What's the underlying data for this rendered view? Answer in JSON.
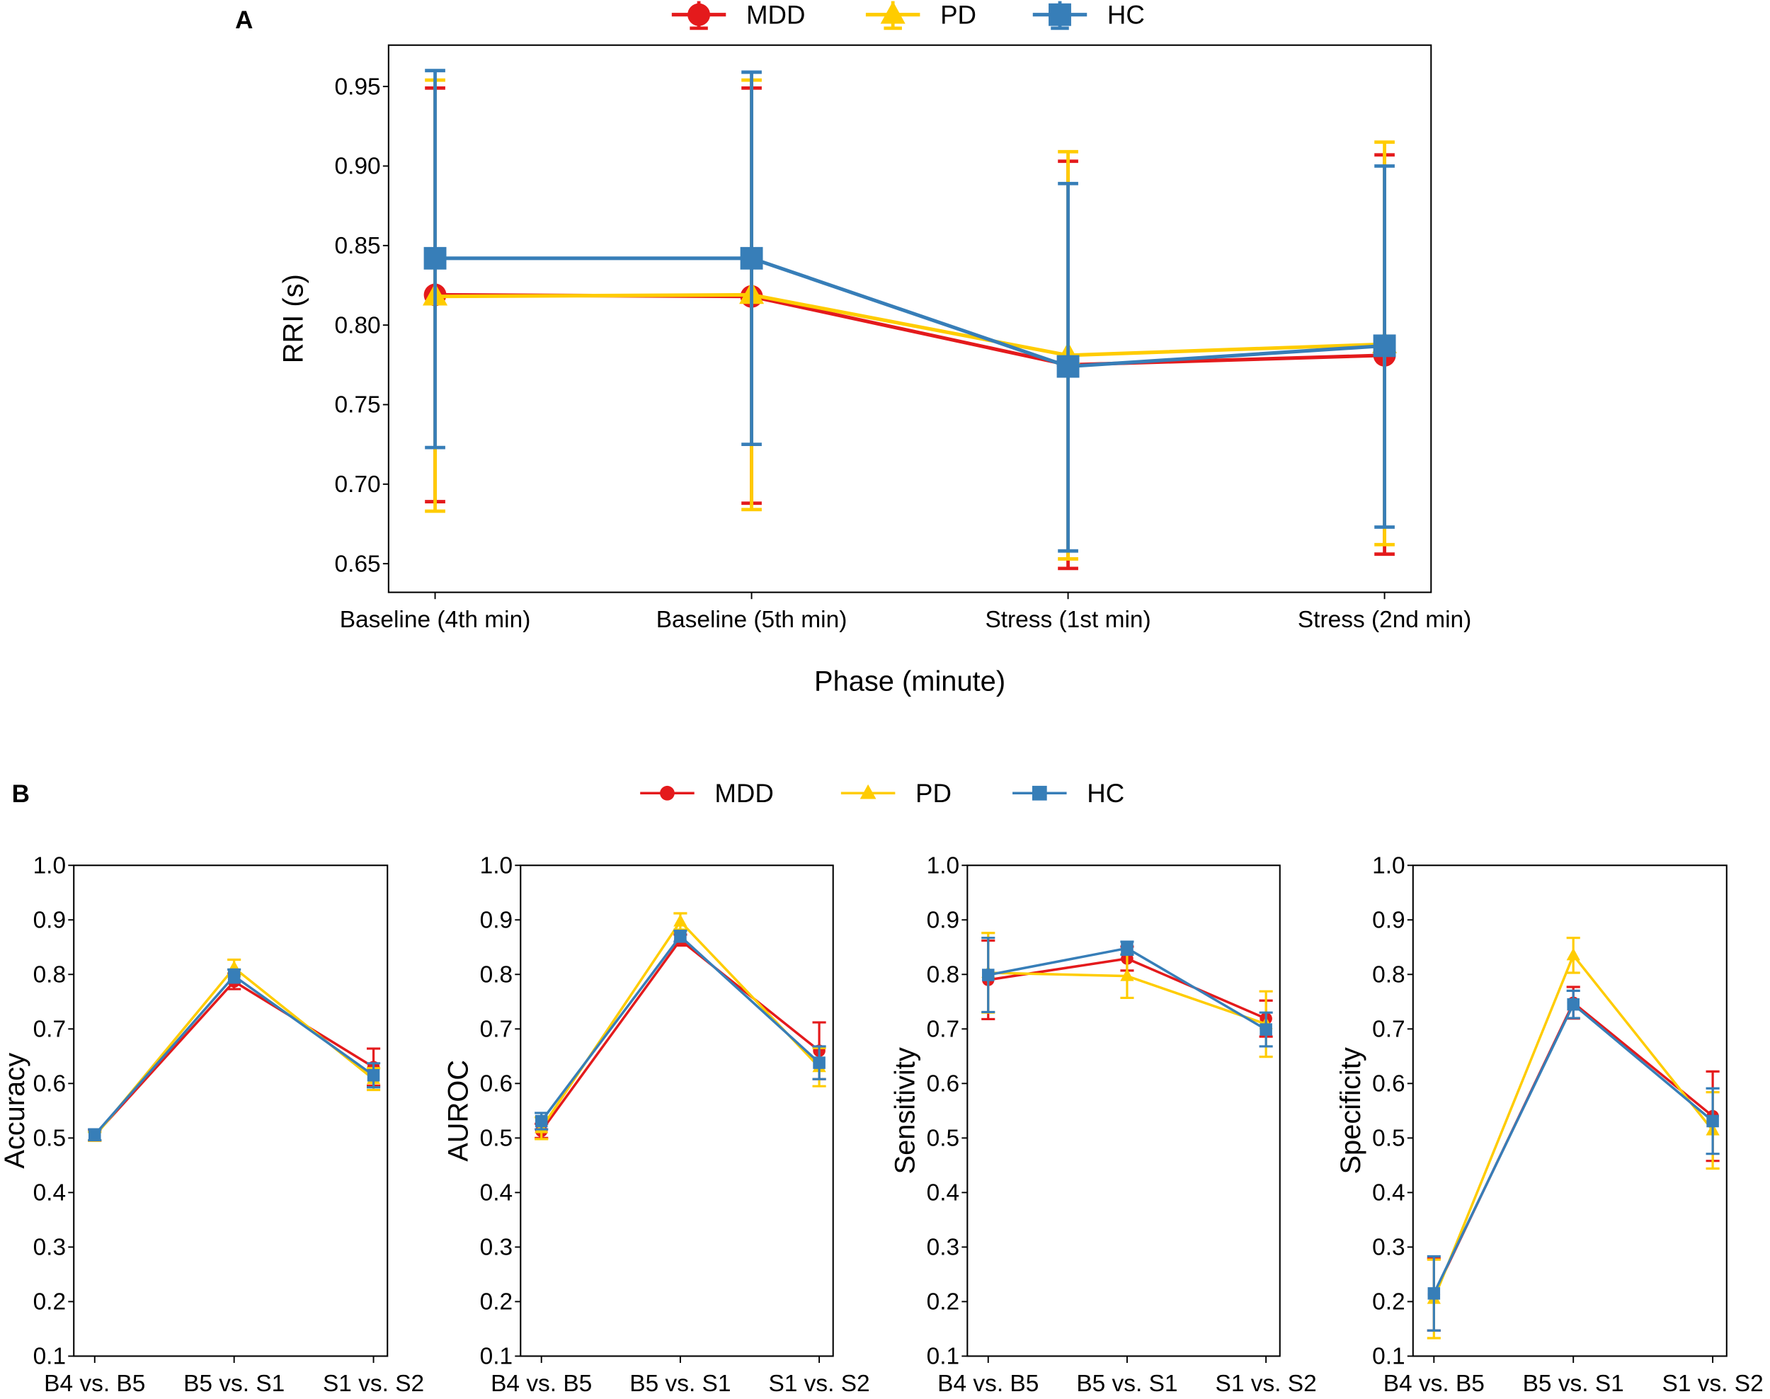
{
  "colors": {
    "MDD": "#e41a1c",
    "PD": "#ffcc00",
    "HC": "#377eb8"
  },
  "chart_data": [
    {
      "panel": "A",
      "type": "line",
      "title": "",
      "xlabel": "Phase (minute)",
      "ylabel": "RRI (s)",
      "categories": [
        "Baseline (4th min)",
        "Baseline (5th min)",
        "Stress (1st min)",
        "Stress (2nd min)"
      ],
      "ylim": [
        0.632,
        0.976
      ],
      "yticks": [
        0.65,
        0.7,
        0.75,
        0.8,
        0.85,
        0.9,
        0.95
      ],
      "ytick_labels": [
        "0.65",
        "0.70",
        "0.75",
        "0.80",
        "0.85",
        "0.90",
        "0.95"
      ],
      "legend": "top-center, outside",
      "series": [
        {
          "name": "MDD",
          "marker": "circle",
          "values": [
            0.819,
            0.818,
            0.775,
            0.781
          ],
          "upper": [
            0.949,
            0.949,
            0.903,
            0.907
          ],
          "lower": [
            0.689,
            0.688,
            0.647,
            0.656
          ]
        },
        {
          "name": "PD",
          "marker": "triangle",
          "values": [
            0.818,
            0.819,
            0.781,
            0.788
          ],
          "upper": [
            0.954,
            0.954,
            0.909,
            0.915
          ],
          "lower": [
            0.683,
            0.684,
            0.653,
            0.662
          ]
        },
        {
          "name": "HC",
          "marker": "square",
          "values": [
            0.842,
            0.842,
            0.774,
            0.787
          ],
          "upper": [
            0.96,
            0.959,
            0.889,
            0.9
          ],
          "lower": [
            0.723,
            0.725,
            0.658,
            0.673
          ]
        }
      ]
    },
    {
      "panel": "B",
      "type": "line",
      "ylabel": "Accuracy",
      "categories": [
        "B4 vs. B5",
        "B5 vs. S1",
        "S1 vs. S2"
      ],
      "ylim": [
        0.1,
        1.0
      ],
      "yticks": [
        0.1,
        0.2,
        0.3,
        0.4,
        0.5,
        0.6,
        0.7,
        0.8,
        0.9,
        1.0
      ],
      "ytick_labels": [
        "0.1",
        "0.2",
        "0.3",
        "0.4",
        "0.5",
        "0.6",
        "0.7",
        "0.8",
        "0.9",
        "1.0"
      ],
      "series": [
        {
          "name": "MDD",
          "marker": "circle",
          "values": [
            0.505,
            0.787,
            0.63
          ],
          "err": [
            0.01,
            0.014,
            0.034
          ]
        },
        {
          "name": "PD",
          "marker": "triangle",
          "values": [
            0.503,
            0.812,
            0.608
          ],
          "err": [
            0.008,
            0.015,
            0.02
          ]
        },
        {
          "name": "HC",
          "marker": "square",
          "values": [
            0.506,
            0.797,
            0.615
          ],
          "err": [
            0.01,
            0.012,
            0.022
          ]
        }
      ]
    },
    {
      "panel": "B",
      "type": "line",
      "ylabel": "AUROC",
      "categories": [
        "B4 vs. B5",
        "B5 vs. S1",
        "S1 vs. S2"
      ],
      "ylim": [
        0.1,
        1.0
      ],
      "yticks": [
        0.1,
        0.2,
        0.3,
        0.4,
        0.5,
        0.6,
        0.7,
        0.8,
        0.9,
        1.0
      ],
      "ytick_labels": [
        "0.1",
        "0.2",
        "0.3",
        "0.4",
        "0.5",
        "0.6",
        "0.7",
        "0.8",
        "0.9",
        "1.0"
      ],
      "series": [
        {
          "name": "MDD",
          "marker": "circle",
          "values": [
            0.513,
            0.863,
            0.66
          ],
          "err": [
            0.013,
            0.01,
            0.052
          ]
        },
        {
          "name": "PD",
          "marker": "triangle",
          "values": [
            0.518,
            0.897,
            0.63
          ],
          "err": [
            0.02,
            0.015,
            0.035
          ]
        },
        {
          "name": "HC",
          "marker": "square",
          "values": [
            0.531,
            0.87,
            0.638
          ],
          "err": [
            0.015,
            0.01,
            0.03
          ]
        }
      ]
    },
    {
      "panel": "B",
      "type": "line",
      "ylabel": "Sensitivity",
      "categories": [
        "B4 vs. B5",
        "B5 vs. S1",
        "S1 vs. S2"
      ],
      "ylim": [
        0.1,
        1.0
      ],
      "yticks": [
        0.1,
        0.2,
        0.3,
        0.4,
        0.5,
        0.6,
        0.7,
        0.8,
        0.9,
        1.0
      ],
      "ytick_labels": [
        "0.1",
        "0.2",
        "0.3",
        "0.4",
        "0.5",
        "0.6",
        "0.7",
        "0.8",
        "0.9",
        "1.0"
      ],
      "series": [
        {
          "name": "MDD",
          "marker": "circle",
          "values": [
            0.79,
            0.829,
            0.719
          ],
          "err": [
            0.072,
            0.022,
            0.033
          ]
        },
        {
          "name": "PD",
          "marker": "triangle",
          "values": [
            0.803,
            0.797,
            0.709
          ],
          "err": [
            0.073,
            0.04,
            0.06
          ]
        },
        {
          "name": "HC",
          "marker": "square",
          "values": [
            0.799,
            0.848,
            0.699
          ],
          "err": [
            0.068,
            0.012,
            0.031
          ]
        }
      ]
    },
    {
      "panel": "B",
      "type": "line",
      "ylabel": "Specificity",
      "categories": [
        "B4 vs. B5",
        "B5 vs. S1",
        "S1 vs. S2"
      ],
      "ylim": [
        0.1,
        1.0
      ],
      "yticks": [
        0.1,
        0.2,
        0.3,
        0.4,
        0.5,
        0.6,
        0.7,
        0.8,
        0.9,
        1.0
      ],
      "ytick_labels": [
        "0.1",
        "0.2",
        "0.3",
        "0.4",
        "0.5",
        "0.6",
        "0.7",
        "0.8",
        "0.9",
        "1.0"
      ],
      "series": [
        {
          "name": "MDD",
          "marker": "circle",
          "values": [
            0.213,
            0.748,
            0.54
          ],
          "err": [
            0.066,
            0.029,
            0.082
          ]
        },
        {
          "name": "PD",
          "marker": "triangle",
          "values": [
            0.205,
            0.835,
            0.514
          ],
          "err": [
            0.072,
            0.032,
            0.07
          ]
        },
        {
          "name": "HC",
          "marker": "square",
          "values": [
            0.215,
            0.745,
            0.531
          ],
          "err": [
            0.068,
            0.025,
            0.06
          ]
        }
      ]
    }
  ],
  "panel_labels": {
    "a": "A",
    "b": "B"
  },
  "legend_labels": [
    "MDD",
    "PD",
    "HC"
  ]
}
